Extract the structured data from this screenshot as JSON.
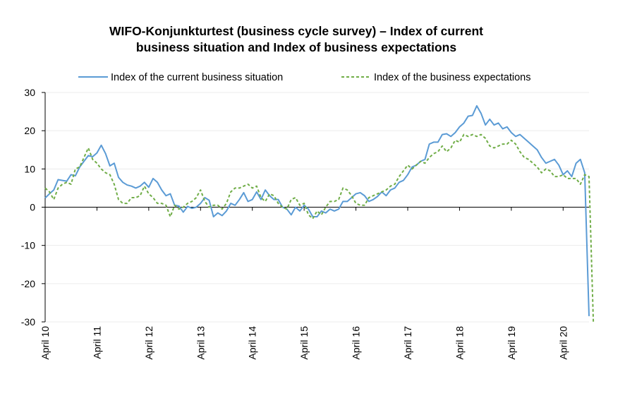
{
  "chart_data": {
    "type": "line",
    "title_line1": "WIFO-Konjunkturtest (business cycle survey) – Index of current",
    "title_line2": "business situation and Index of business expectations",
    "xlabel": "",
    "ylabel": "",
    "ylim": [
      -30,
      30
    ],
    "yticks": [
      "30",
      "20",
      "10",
      "0",
      "-10",
      "-20",
      "-30"
    ],
    "xtick_labels": [
      "April 10",
      "April 11",
      "April 12",
      "April 13",
      "April 14",
      "April 15",
      "April 16",
      "April 17",
      "April 18",
      "April 19",
      "April 20"
    ],
    "grid": "horizontal",
    "legend_position": "top",
    "x_start": "2010-04",
    "x_end": "2020-04",
    "series": [
      {
        "name": "Index of the current business situation",
        "color": "#5b9bd5",
        "style": "solid",
        "values": [
          2.4,
          3.5,
          4.5,
          7.2,
          7.0,
          6.8,
          8.5,
          8.2,
          10.5,
          12.0,
          13.5,
          13.2,
          14.2,
          16.2,
          14.0,
          10.8,
          11.5,
          7.8,
          6.5,
          5.8,
          5.5,
          5.0,
          5.5,
          6.5,
          5.2,
          7.5,
          6.5,
          4.5,
          3.0,
          3.5,
          0.5,
          0.3,
          -1.3,
          0.2,
          -0.3,
          0.0,
          1.0,
          2.5,
          1.8,
          -2.5,
          -1.5,
          -2.2,
          -1.0,
          1.0,
          0.5,
          2.0,
          3.8,
          1.5,
          2.0,
          4.0,
          2.0,
          4.5,
          3.0,
          2.0,
          2.0,
          0.0,
          -0.5,
          -2.0,
          0.0,
          -1.0,
          0.5,
          -0.5,
          -2.5,
          -2.5,
          -1.0,
          -1.5,
          -0.5,
          -1.0,
          -0.5,
          1.5,
          1.5,
          2.5,
          3.5,
          3.8,
          3.0,
          1.5,
          2.0,
          2.8,
          4.0,
          3.0,
          4.5,
          5.0,
          6.5,
          7.0,
          8.5,
          10.5,
          11.0,
          12.0,
          12.5,
          16.5,
          17.0,
          17.0,
          19.0,
          19.2,
          18.5,
          19.5,
          21.0,
          22.0,
          23.8,
          24.0,
          26.5,
          24.5,
          21.5,
          23.0,
          21.5,
          22.0,
          20.5,
          21.0,
          19.5,
          18.5,
          19.0,
          18.0,
          17.0,
          16.0,
          15.0,
          13.0,
          11.5,
          12.0,
          12.5,
          11.0,
          8.5,
          9.5,
          8.0,
          11.5,
          12.5,
          9.0,
          -28.5
        ]
      },
      {
        "name": "Index of the business expectations",
        "color": "#70ad47",
        "style": "dashed",
        "values": [
          5.0,
          4.0,
          2.0,
          5.0,
          6.0,
          6.5,
          6.0,
          10.0,
          10.5,
          13.0,
          15.5,
          12.5,
          11.5,
          10.0,
          9.0,
          8.5,
          6.0,
          2.0,
          1.0,
          1.0,
          2.5,
          2.5,
          3.0,
          5.5,
          3.5,
          2.5,
          1.0,
          1.0,
          0.5,
          -2.5,
          0.5,
          -0.5,
          0.0,
          1.0,
          1.5,
          2.5,
          4.5,
          1.5,
          0.0,
          0.5,
          0.5,
          -0.5,
          1.0,
          4.0,
          5.0,
          5.0,
          5.5,
          6.0,
          5.0,
          5.5,
          2.5,
          1.5,
          3.5,
          3.0,
          1.0,
          0.0,
          -0.5,
          2.0,
          2.5,
          0.5,
          1.0,
          -2.0,
          -3.0,
          -1.0,
          -2.0,
          0.0,
          1.5,
          1.5,
          2.0,
          5.0,
          4.5,
          3.0,
          1.0,
          0.5,
          0.5,
          2.5,
          3.0,
          3.5,
          4.0,
          4.5,
          5.5,
          6.0,
          8.0,
          9.5,
          11.0,
          10.0,
          11.0,
          12.0,
          11.5,
          13.0,
          14.0,
          14.5,
          16.0,
          14.5,
          15.5,
          17.5,
          17.0,
          19.0,
          18.5,
          19.0,
          18.5,
          19.0,
          18.0,
          16.0,
          15.5,
          16.0,
          16.5,
          16.5,
          17.5,
          16.5,
          14.5,
          13.0,
          12.5,
          11.5,
          10.5,
          9.0,
          10.0,
          9.5,
          8.0,
          8.0,
          8.5,
          7.5,
          7.5,
          7.5,
          6.0,
          8.5,
          8.0,
          -30.0
        ]
      }
    ]
  }
}
